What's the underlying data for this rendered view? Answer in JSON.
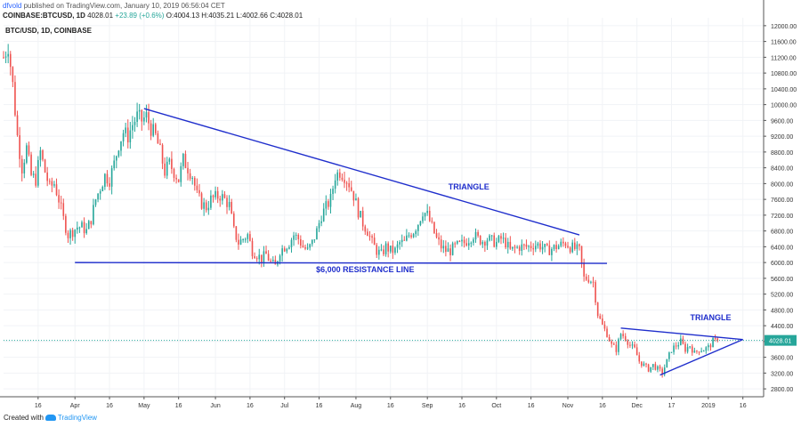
{
  "header": {
    "user": "dfvold",
    "published": "published on TradingView.com, January 10, 2019 06:56:04 CET",
    "symbol": "COINBASE:BTCUSD, 1D",
    "ohlc": "4028.01",
    "change": "+23.89 (+0.6%)",
    "ohlc_rest": "O:4004.13 H:4035.21 L:4002.66 C:4028.01"
  },
  "symbol_label": "BTC/USD, 1D, COINBASE",
  "footer": {
    "created_with": "Created with",
    "brand": "TradingView"
  },
  "colors": {
    "up": "#26a69a",
    "down": "#ef5350",
    "annotation": "#1f2ecc",
    "last_price": "#26a69a"
  },
  "chart_data": {
    "type": "candlestick",
    "symbol": "BTC/USD",
    "interval": "1D",
    "exchange": "COINBASE",
    "ylim": [
      2600,
      12200
    ],
    "y_ticks": [
      2800,
      3200,
      3600,
      4000,
      4400,
      4800,
      5200,
      5600,
      6000,
      6400,
      6800,
      7200,
      7600,
      8000,
      8400,
      8800,
      9200,
      9600,
      10000,
      10400,
      10800,
      11200,
      11600,
      12000
    ],
    "y_tick_labels": [
      "2800.00",
      "3200.00",
      "3600.00",
      "4000.00",
      "4400.00",
      "4800.00",
      "5200.00",
      "5600.00",
      "6000.00",
      "6400.00",
      "6800.00",
      "7200.00",
      "7600.00",
      "8000.00",
      "8400.00",
      "8800.00",
      "9200.00",
      "9600.00",
      "10000.00",
      "10400.00",
      "10800.00",
      "11200.00",
      "11600.00",
      "12000.00"
    ],
    "x_ticks": [
      {
        "day": 15,
        "label": "16"
      },
      {
        "day": 31,
        "label": "Apr"
      },
      {
        "day": 46,
        "label": "16"
      },
      {
        "day": 61,
        "label": "May"
      },
      {
        "day": 76,
        "label": "16"
      },
      {
        "day": 92,
        "label": "Jun"
      },
      {
        "day": 107,
        "label": "16"
      },
      {
        "day": 122,
        "label": "Jul"
      },
      {
        "day": 137,
        "label": "16"
      },
      {
        "day": 153,
        "label": "Aug"
      },
      {
        "day": 168,
        "label": "16"
      },
      {
        "day": 184,
        "label": "Sep"
      },
      {
        "day": 199,
        "label": "16"
      },
      {
        "day": 214,
        "label": "Oct"
      },
      {
        "day": 229,
        "label": "16"
      },
      {
        "day": 245,
        "label": "Nov"
      },
      {
        "day": 260,
        "label": "16"
      },
      {
        "day": 275,
        "label": "Dec"
      },
      {
        "day": 290,
        "label": "17"
      },
      {
        "day": 306,
        "label": "2019"
      },
      {
        "day": 321,
        "label": "16"
      }
    ],
    "price_points": [
      [
        0,
        11200
      ],
      [
        2,
        11500
      ],
      [
        4,
        10500
      ],
      [
        6,
        9200
      ],
      [
        8,
        8400
      ],
      [
        10,
        8900
      ],
      [
        12,
        8200
      ],
      [
        14,
        8100
      ],
      [
        16,
        8800
      ],
      [
        18,
        8300
      ],
      [
        20,
        7900
      ],
      [
        22,
        8000
      ],
      [
        24,
        7600
      ],
      [
        26,
        7100
      ],
      [
        28,
        6700
      ],
      [
        30,
        6800
      ],
      [
        32,
        6900
      ],
      [
        34,
        6900
      ],
      [
        36,
        6800
      ],
      [
        38,
        7100
      ],
      [
        40,
        7600
      ],
      [
        42,
        7900
      ],
      [
        44,
        8200
      ],
      [
        46,
        8100
      ],
      [
        48,
        8500
      ],
      [
        50,
        9000
      ],
      [
        52,
        9300
      ],
      [
        54,
        9200
      ],
      [
        56,
        9500
      ],
      [
        58,
        9700
      ],
      [
        60,
        9600
      ],
      [
        62,
        9700
      ],
      [
        64,
        9400
      ],
      [
        66,
        9200
      ],
      [
        68,
        8800
      ],
      [
        70,
        8300
      ],
      [
        72,
        8500
      ],
      [
        74,
        8300
      ],
      [
        76,
        8100
      ],
      [
        78,
        8600
      ],
      [
        80,
        8400
      ],
      [
        82,
        8200
      ],
      [
        84,
        7700
      ],
      [
        86,
        7500
      ],
      [
        88,
        7400
      ],
      [
        90,
        7600
      ],
      [
        92,
        7650
      ],
      [
        94,
        7700
      ],
      [
        96,
        7600
      ],
      [
        98,
        7450
      ],
      [
        100,
        6800
      ],
      [
        102,
        6500
      ],
      [
        104,
        6600
      ],
      [
        106,
        6700
      ],
      [
        108,
        6300
      ],
      [
        110,
        6200
      ],
      [
        112,
        6100
      ],
      [
        114,
        6200
      ],
      [
        116,
        6000
      ],
      [
        118,
        5900
      ],
      [
        120,
        6300
      ],
      [
        122,
        6400
      ],
      [
        124,
        6500
      ],
      [
        126,
        6700
      ],
      [
        128,
        6600
      ],
      [
        130,
        6400
      ],
      [
        132,
        6300
      ],
      [
        134,
        6500
      ],
      [
        136,
        6800
      ],
      [
        138,
        7200
      ],
      [
        140,
        7400
      ],
      [
        142,
        7600
      ],
      [
        144,
        8200
      ],
      [
        146,
        8300
      ],
      [
        148,
        8200
      ],
      [
        150,
        8000
      ],
      [
        152,
        7700
      ],
      [
        154,
        7300
      ],
      [
        156,
        7000
      ],
      [
        158,
        6800
      ],
      [
        160,
        6500
      ],
      [
        162,
        6300
      ],
      [
        164,
        6200
      ],
      [
        166,
        6400
      ],
      [
        168,
        6300
      ],
      [
        170,
        6300
      ],
      [
        172,
        6500
      ],
      [
        174,
        6500
      ],
      [
        176,
        6700
      ],
      [
        178,
        6800
      ],
      [
        180,
        7000
      ],
      [
        182,
        7300
      ],
      [
        184,
        7200
      ],
      [
        186,
        6900
      ],
      [
        188,
        6600
      ],
      [
        190,
        6400
      ],
      [
        192,
        6300
      ],
      [
        194,
        6300
      ],
      [
        196,
        6400
      ],
      [
        198,
        6450
      ],
      [
        200,
        6500
      ],
      [
        202,
        6600
      ],
      [
        204,
        6700
      ],
      [
        206,
        6600
      ],
      [
        208,
        6550
      ],
      [
        210,
        6600
      ],
      [
        212,
        6550
      ],
      [
        214,
        6500
      ],
      [
        216,
        6600
      ],
      [
        218,
        6500
      ],
      [
        220,
        6300
      ],
      [
        222,
        6350
      ],
      [
        224,
        6400
      ],
      [
        226,
        6400
      ],
      [
        228,
        6400
      ],
      [
        230,
        6450
      ],
      [
        232,
        6450
      ],
      [
        234,
        6400
      ],
      [
        236,
        6300
      ],
      [
        238,
        6350
      ],
      [
        240,
        6400
      ],
      [
        242,
        6450
      ],
      [
        244,
        6500
      ],
      [
        246,
        6400
      ],
      [
        248,
        6350
      ],
      [
        250,
        6300
      ],
      [
        252,
        5600
      ],
      [
        254,
        5600
      ],
      [
        256,
        5500
      ],
      [
        258,
        4700
      ],
      [
        260,
        4400
      ],
      [
        262,
        4200
      ],
      [
        264,
        3900
      ],
      [
        266,
        3800
      ],
      [
        268,
        4200
      ],
      [
        270,
        4100
      ],
      [
        272,
        3900
      ],
      [
        274,
        3800
      ],
      [
        276,
        3500
      ],
      [
        278,
        3400
      ],
      [
        280,
        3300
      ],
      [
        282,
        3400
      ],
      [
        284,
        3300
      ],
      [
        286,
        3200
      ],
      [
        288,
        3500
      ],
      [
        290,
        3800
      ],
      [
        292,
        3900
      ],
      [
        294,
        4000
      ],
      [
        296,
        3800
      ],
      [
        298,
        3900
      ],
      [
        300,
        3700
      ],
      [
        302,
        3800
      ],
      [
        304,
        3800
      ],
      [
        306,
        3850
      ],
      [
        308,
        4000
      ],
      [
        310,
        4028
      ]
    ],
    "last_price": 4028.01,
    "last_price_label": "4028.01",
    "annotations": {
      "lines": [
        {
          "name": "upper-triangle-line",
          "from": [
            61,
            9900
          ],
          "to": [
            250,
            6700
          ]
        },
        {
          "name": "resistance-line",
          "from": [
            31,
            6000
          ],
          "to": [
            262,
            5980
          ]
        },
        {
          "name": "small-triangle-upper",
          "from": [
            268,
            4340
          ],
          "to": [
            321,
            4050
          ]
        },
        {
          "name": "small-triangle-lower",
          "from": [
            285,
            3150
          ],
          "to": [
            321,
            4050
          ]
        }
      ],
      "labels": [
        {
          "name": "triangle-label",
          "text": "TRIANGLE",
          "day": 202,
          "price": 7850
        },
        {
          "name": "resistance-label",
          "text": "$6,000 RESISTANCE LINE",
          "day": 157,
          "price": 5750
        },
        {
          "name": "triangle-label-small",
          "text": "TRIANGLE",
          "day": 307,
          "price": 4540
        }
      ]
    }
  }
}
